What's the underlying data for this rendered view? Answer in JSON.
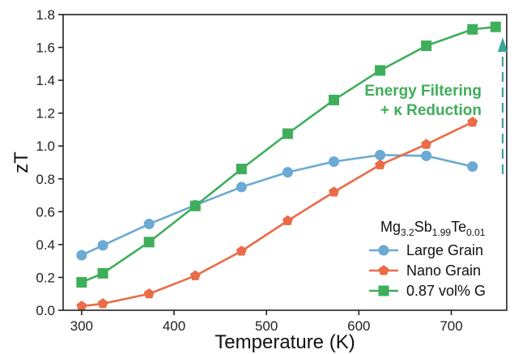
{
  "chart_data": {
    "type": "line",
    "xlabel": "Temperature (K)",
    "ylabel": "zT",
    "xlim": [
      280,
      760
    ],
    "ylim": [
      0,
      1.8
    ],
    "xticks": [
      "300",
      "400",
      "500",
      "600",
      "700"
    ],
    "yticks": [
      "0.0",
      "0.2",
      "0.4",
      "0.6",
      "0.8",
      "1.0",
      "1.2",
      "1.4",
      "1.6",
      "1.8"
    ],
    "grid": false,
    "legend_position": "bottom-right",
    "legend_title": {
      "base": "Mg",
      "sub1": "3.2",
      "mid1": "Sb",
      "sub2": "1.99",
      "mid2": "Te",
      "sub3": "0.01"
    },
    "series": [
      {
        "name": "Large Grain",
        "color": "#6aaad4",
        "marker": "circle",
        "x": [
          300,
          323,
          373,
          423,
          473,
          523,
          573,
          623,
          673,
          723
        ],
        "y": [
          0.335,
          0.395,
          0.525,
          0.64,
          0.75,
          0.84,
          0.905,
          0.945,
          0.94,
          0.875
        ]
      },
      {
        "name": "Nano Grain",
        "color": "#ea6b47",
        "marker": "pentagon",
        "x": [
          300,
          323,
          373,
          423,
          473,
          523,
          573,
          623,
          673,
          723
        ],
        "y": [
          0.025,
          0.04,
          0.1,
          0.21,
          0.36,
          0.545,
          0.72,
          0.885,
          1.01,
          1.145
        ]
      },
      {
        "name": "0.87 vol% G",
        "color": "#3fae5a",
        "marker": "square",
        "x": [
          300,
          323,
          373,
          423,
          473,
          523,
          573,
          623,
          673,
          723,
          748
        ],
        "y": [
          0.17,
          0.225,
          0.415,
          0.635,
          0.86,
          1.075,
          1.28,
          1.46,
          1.61,
          1.71,
          1.725
        ]
      }
    ],
    "annotation": {
      "line1": "Energy Filtering",
      "line2": "+ κ Reduction",
      "color": "#3fae5a",
      "arrow_color": "#3aa59a"
    }
  }
}
